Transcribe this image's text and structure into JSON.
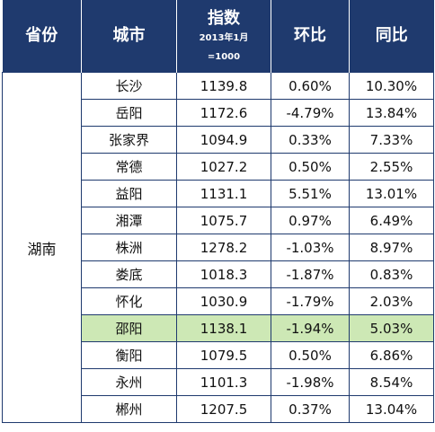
{
  "header": {
    "province": "省份",
    "city": "城市",
    "index_title": "指数",
    "index_sub": "2013年1月",
    "index_base": "=1000",
    "mom": "环比",
    "yoy": "同比"
  },
  "province": "湖南",
  "highlight_color": "#cde8b5",
  "header_color": "#1f3a6e",
  "rows": [
    {
      "city": "长沙",
      "index": "1139.8",
      "mom": "0.60%",
      "yoy": "10.30%"
    },
    {
      "city": "岳阳",
      "index": "1172.6",
      "mom": "-4.79%",
      "yoy": "13.84%"
    },
    {
      "city": "张家界",
      "index": "1094.9",
      "mom": "0.33%",
      "yoy": "7.33%"
    },
    {
      "city": "常德",
      "index": "1027.2",
      "mom": "0.50%",
      "yoy": "2.55%"
    },
    {
      "city": "益阳",
      "index": "1131.1",
      "mom": "5.51%",
      "yoy": "13.01%"
    },
    {
      "city": "湘潭",
      "index": "1075.7",
      "mom": "0.97%",
      "yoy": "6.49%"
    },
    {
      "city": "株洲",
      "index": "1278.2",
      "mom": "-1.03%",
      "yoy": "8.97%"
    },
    {
      "city": "娄底",
      "index": "1018.3",
      "mom": "-1.87%",
      "yoy": "0.83%"
    },
    {
      "city": "怀化",
      "index": "1030.9",
      "mom": "-1.79%",
      "yoy": "2.03%"
    },
    {
      "city": "邵阳",
      "index": "1138.1",
      "mom": "-1.94%",
      "yoy": "5.03%"
    },
    {
      "city": "衡阳",
      "index": "1079.5",
      "mom": "0.50%",
      "yoy": "6.86%"
    },
    {
      "city": "永州",
      "index": "1101.3",
      "mom": "-1.98%",
      "yoy": "8.54%"
    },
    {
      "city": "郴州",
      "index": "1207.5",
      "mom": "0.37%",
      "yoy": "13.04%"
    }
  ]
}
